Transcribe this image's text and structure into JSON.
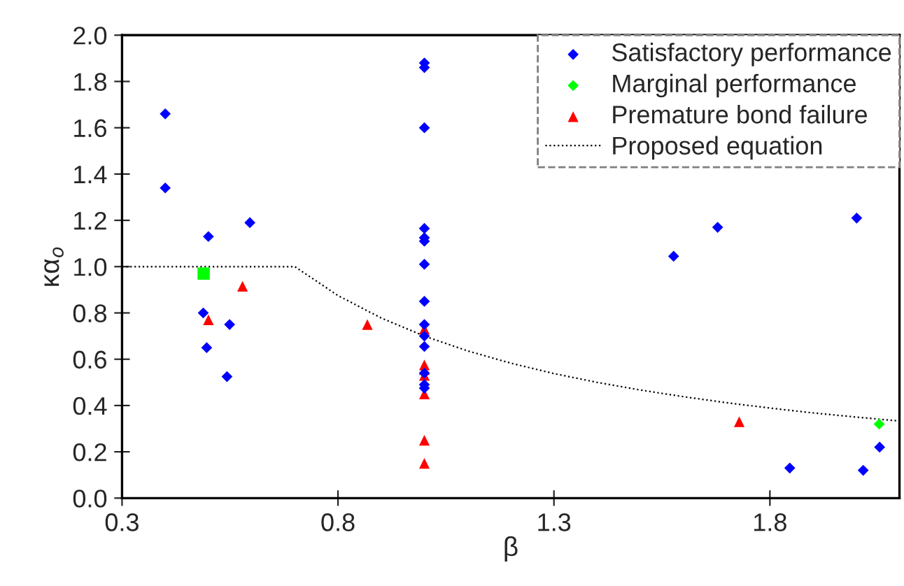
{
  "chart_data": {
    "type": "scatter",
    "xlabel": "β",
    "ylabel": "κα$_{o}$",
    "xlim": [
      0.3,
      2.1
    ],
    "xticks": [
      0.3,
      0.8,
      1.3,
      1.8
    ],
    "ylim": [
      0,
      2.0
    ],
    "yticks": [
      {
        "value": 0,
        "label": "0.0"
      },
      {
        "value": 0.2,
        "label": "0.2"
      },
      {
        "value": 0.4,
        "label": "0.4"
      },
      {
        "value": 0.6,
        "label": "0.6"
      },
      {
        "value": 0.8,
        "label": "0.8"
      },
      {
        "value": 1.0,
        "label": "1.0"
      },
      {
        "value": 1.2,
        "label": "1.2"
      },
      {
        "value": 1.4,
        "label": "1.4"
      },
      {
        "value": 1.6,
        "label": "1.6"
      },
      {
        "value": 1.8,
        "label": "1.8"
      },
      {
        "value": 2.0,
        "label": "2.0"
      }
    ],
    "grid": false,
    "legend": "top right",
    "series": [
      {
        "name": "Satisfactory performance",
        "color": "#0000ff",
        "marker": "diamond",
        "x": [
          0.4,
          0.4,
          0.5,
          0.596,
          0.488,
          0.549,
          0.496,
          0.543,
          1.0,
          1.0,
          1.0,
          1.0,
          1.0,
          1.0,
          1.0,
          1.0,
          1.0,
          1.0,
          1.0,
          1.0,
          1.0,
          1.0,
          1.577,
          1.679,
          2.001,
          2.054,
          1.846,
          2.016
        ],
        "values": [
          1.66,
          1.34,
          1.13,
          1.19,
          0.8,
          0.75,
          0.65,
          0.525,
          1.88,
          1.86,
          1.6,
          1.165,
          1.125,
          1.11,
          1.01,
          0.85,
          0.75,
          0.7,
          0.655,
          0.54,
          0.49,
          0.475,
          1.045,
          1.17,
          1.21,
          0.22,
          0.13,
          0.12
        ]
      },
      {
        "name": "Marginal performance",
        "color": "#00ff00",
        "marker": "diamond",
        "x": [
          2.053
        ],
        "values": [
          0.32
        ]
      },
      {
        "color": "#00ff00",
        "marker": "square",
        "x": [
          0.489
        ],
        "values": [
          0.97
        ]
      },
      {
        "name": "Premature bond failure",
        "color": "#ff0000",
        "marker": "triangle",
        "x": [
          0.579,
          0.5,
          0.868,
          1.0,
          1.0,
          1.0,
          1.0,
          1.0,
          1.0,
          1.0,
          1.729
        ],
        "values": [
          0.915,
          0.77,
          0.75,
          0.73,
          0.575,
          0.555,
          0.53,
          0.45,
          0.25,
          0.15,
          0.33
        ]
      },
      {
        "name": "Proposed equation",
        "type": "line",
        "color": "#000000",
        "line_style": "dotted",
        "x": [
          0.3,
          0.7,
          0.8,
          0.9,
          1.0,
          1.1,
          1.2,
          1.3,
          1.4,
          1.5,
          1.6,
          1.7,
          1.8,
          1.9,
          2.0,
          2.1
        ],
        "values": [
          1.0,
          1.0,
          0.875,
          0.778,
          0.7,
          0.636,
          0.583,
          0.538,
          0.5,
          0.467,
          0.438,
          0.412,
          0.389,
          0.368,
          0.35,
          0.333
        ]
      }
    ]
  }
}
